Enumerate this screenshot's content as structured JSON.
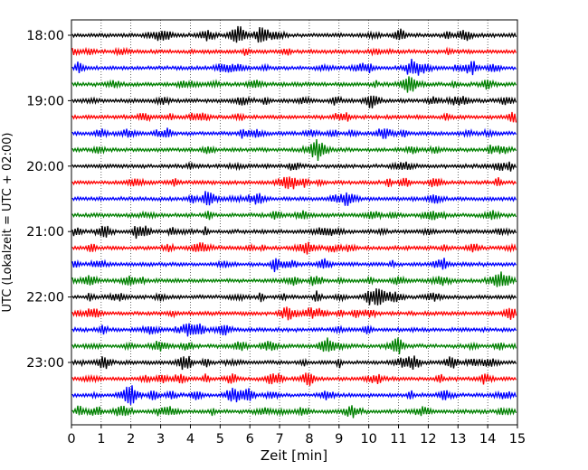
{
  "chart_data": {
    "type": "line",
    "title": "",
    "xlabel": "Zeit  [min]",
    "ylabel": "UTC (Lokalzeit = UTC + 02:00)",
    "xlim": [
      0,
      15
    ],
    "x_ticks": [
      "0",
      "1",
      "2",
      "3",
      "4",
      "5",
      "6",
      "7",
      "8",
      "9",
      "10",
      "11",
      "12",
      "13",
      "14",
      "15"
    ],
    "y_tick_labels": [
      "18:00",
      "19:00",
      "20:00",
      "21:00",
      "22:00",
      "23:00"
    ],
    "y_tick_rows": [
      0,
      4,
      8,
      12,
      16,
      20
    ],
    "grid": "vertical dotted at each minute",
    "trace_colors": [
      "#000000",
      "#ff0000",
      "#0000ff",
      "#008000"
    ],
    "traces": [
      {
        "start": "18:00",
        "color": "#000000"
      },
      {
        "start": "18:15",
        "color": "#ff0000"
      },
      {
        "start": "18:30",
        "color": "#0000ff"
      },
      {
        "start": "18:45",
        "color": "#008000"
      },
      {
        "start": "19:00",
        "color": "#000000"
      },
      {
        "start": "19:15",
        "color": "#ff0000"
      },
      {
        "start": "19:30",
        "color": "#0000ff"
      },
      {
        "start": "19:45",
        "color": "#008000"
      },
      {
        "start": "20:00",
        "color": "#000000"
      },
      {
        "start": "20:15",
        "color": "#ff0000"
      },
      {
        "start": "20:30",
        "color": "#0000ff"
      },
      {
        "start": "20:45",
        "color": "#008000"
      },
      {
        "start": "21:00",
        "color": "#000000"
      },
      {
        "start": "21:15",
        "color": "#ff0000"
      },
      {
        "start": "21:30",
        "color": "#0000ff"
      },
      {
        "start": "21:45",
        "color": "#008000"
      },
      {
        "start": "22:00",
        "color": "#000000"
      },
      {
        "start": "22:15",
        "color": "#ff0000"
      },
      {
        "start": "22:30",
        "color": "#0000ff"
      },
      {
        "start": "22:45",
        "color": "#008000"
      },
      {
        "start": "23:00",
        "color": "#000000"
      },
      {
        "start": "23:15",
        "color": "#ff0000"
      },
      {
        "start": "23:30",
        "color": "#0000ff"
      },
      {
        "start": "23:45",
        "color": "#008000"
      }
    ]
  }
}
